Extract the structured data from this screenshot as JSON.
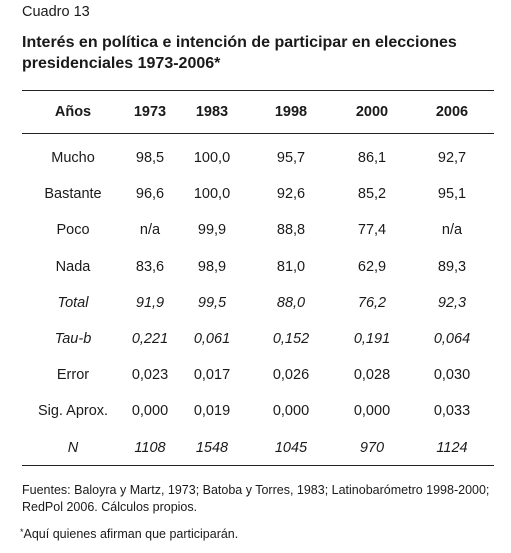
{
  "label": "Cuadro 13",
  "title_lines": [
    "Interés en política e intención de participar en elecciones",
    "presidenciales 1973-2006*"
  ],
  "table": {
    "header": [
      "Años",
      "1973",
      "1983",
      "1998",
      "2000",
      "2006"
    ],
    "rows": [
      {
        "label": "Mucho",
        "italic": false,
        "values": [
          "98,5",
          "100,0",
          "95,7",
          "86,1",
          "92,7"
        ]
      },
      {
        "label": "Bastante",
        "italic": false,
        "values": [
          "96,6",
          "100,0",
          "92,6",
          "85,2",
          "95,1"
        ]
      },
      {
        "label": "Poco",
        "italic": false,
        "values": [
          "n/a",
          "99,9",
          "88,8",
          "77,4",
          "n/a"
        ]
      },
      {
        "label": "Nada",
        "italic": false,
        "values": [
          "83,6",
          "98,9",
          "81,0",
          "62,9",
          "89,3"
        ]
      },
      {
        "label": "Total",
        "italic": true,
        "values": [
          "91,9",
          "99,5",
          "88,0",
          "76,2",
          "92,3"
        ]
      },
      {
        "label": "Tau-b",
        "italic": true,
        "values": [
          "0,221",
          "0,061",
          "0,152",
          "0,191",
          "0,064"
        ]
      },
      {
        "label": "Error",
        "italic": false,
        "values": [
          "0,023",
          "0,017",
          "0,026",
          "0,028",
          "0,030"
        ]
      },
      {
        "label": "Sig. Aprox.",
        "italic": false,
        "values": [
          "0,000",
          "0,019",
          "0,000",
          "0,000",
          "0,033"
        ]
      },
      {
        "label": "N",
        "italic": true,
        "values": [
          "1108",
          "1548",
          "1045",
          "970",
          "1124"
        ]
      }
    ]
  },
  "source_lines": [
    "Fuentes: Baloyra y Martz, 1973; Batoba y Torres, 1983; Latinobarómetro 1998-2000;",
    "RedPol 2006.   Cálculos propios."
  ],
  "footnote": {
    "marker": "*",
    "text": "Aquí quienes afirman que participarán."
  }
}
